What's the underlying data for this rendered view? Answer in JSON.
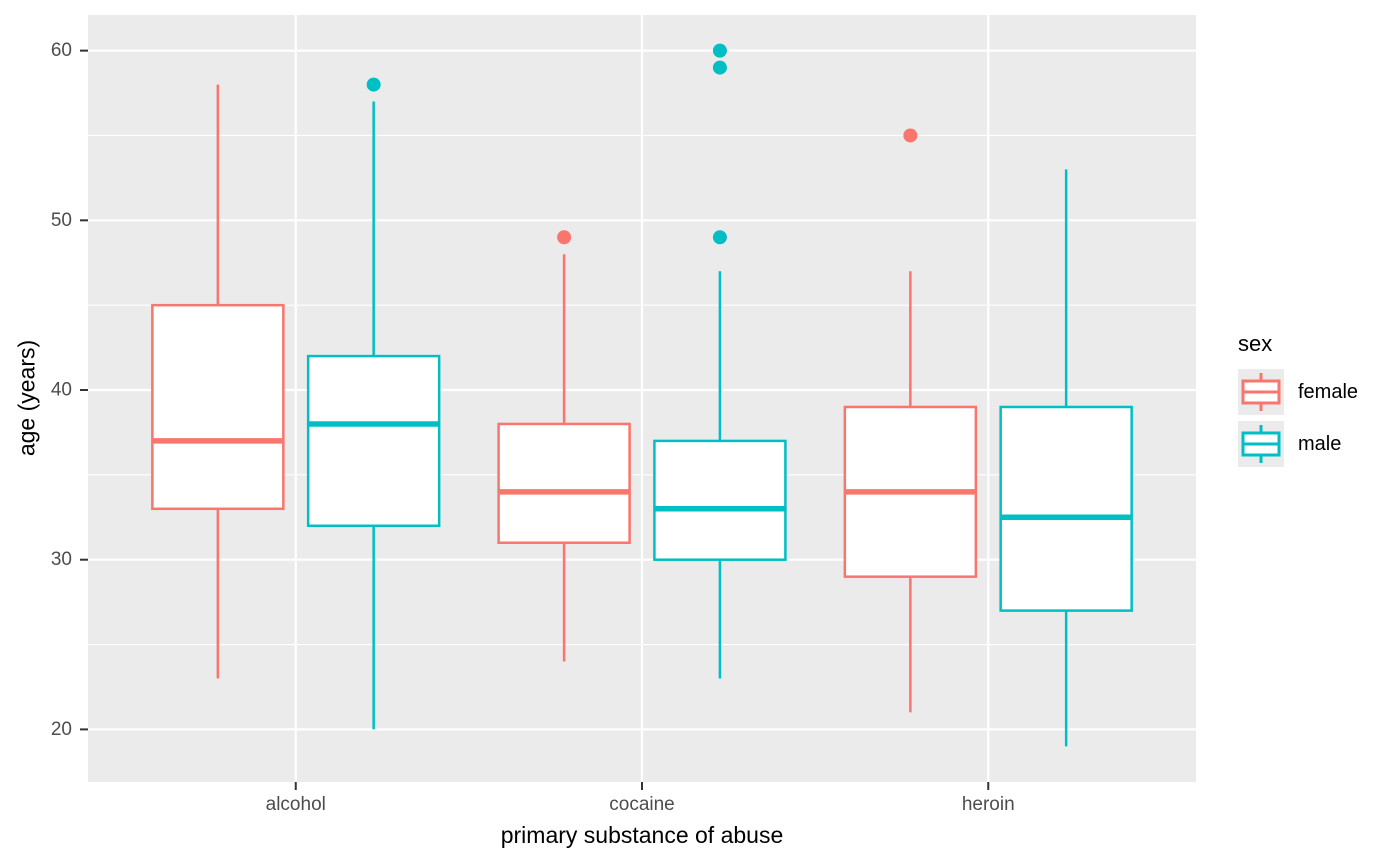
{
  "colors": {
    "female": "#F8766D",
    "male": "#00BFC4",
    "panel_background": "#EBEBEB",
    "grid_line": "#FFFFFF",
    "tick_mark": "#333333",
    "tick_label_text": "#4D4D4D",
    "axis_title_text": "#000000",
    "legend_key_background": "#EBEBEB",
    "box_fill": "#FFFFFF"
  },
  "chart_data": {
    "type": "boxplot",
    "title": "",
    "xlabel": "primary substance of abuse",
    "ylabel": "age (years)",
    "categories": [
      "alcohol",
      "cocaine",
      "heroin"
    ],
    "y_ticks": [
      20,
      30,
      40,
      50,
      60
    ],
    "y_minor_ticks": [
      25,
      35,
      45,
      55
    ],
    "ylim": [
      16.9,
      62.1
    ],
    "grid": "on",
    "legend": {
      "title": "sex",
      "position": "right",
      "entries": [
        {
          "label": "female",
          "color": "#F8766D"
        },
        {
          "label": "male",
          "color": "#00BFC4"
        }
      ]
    },
    "series": [
      {
        "name": "female",
        "color": "#F8766D",
        "boxes": [
          {
            "category": "alcohol",
            "whisker_low": 23,
            "q1": 33,
            "median": 37,
            "q3": 45,
            "whisker_high": 58,
            "outliers": []
          },
          {
            "category": "cocaine",
            "whisker_low": 24,
            "q1": 31,
            "median": 34,
            "q3": 38,
            "whisker_high": 48,
            "outliers": [
              49
            ]
          },
          {
            "category": "heroin",
            "whisker_low": 21,
            "q1": 29,
            "median": 34,
            "q3": 39,
            "whisker_high": 47,
            "outliers": [
              55
            ]
          }
        ]
      },
      {
        "name": "male",
        "color": "#00BFC4",
        "boxes": [
          {
            "category": "alcohol",
            "whisker_low": 20,
            "q1": 32,
            "median": 38,
            "q3": 42,
            "whisker_high": 57,
            "outliers": [
              58
            ]
          },
          {
            "category": "cocaine",
            "whisker_low": 23,
            "q1": 30,
            "median": 33,
            "q3": 37,
            "whisker_high": 47,
            "outliers": [
              49,
              59,
              60
            ]
          },
          {
            "category": "heroin",
            "whisker_low": 19,
            "q1": 27,
            "median": 32.5,
            "q3": 39,
            "whisker_high": 53,
            "outliers": []
          }
        ]
      }
    ]
  }
}
